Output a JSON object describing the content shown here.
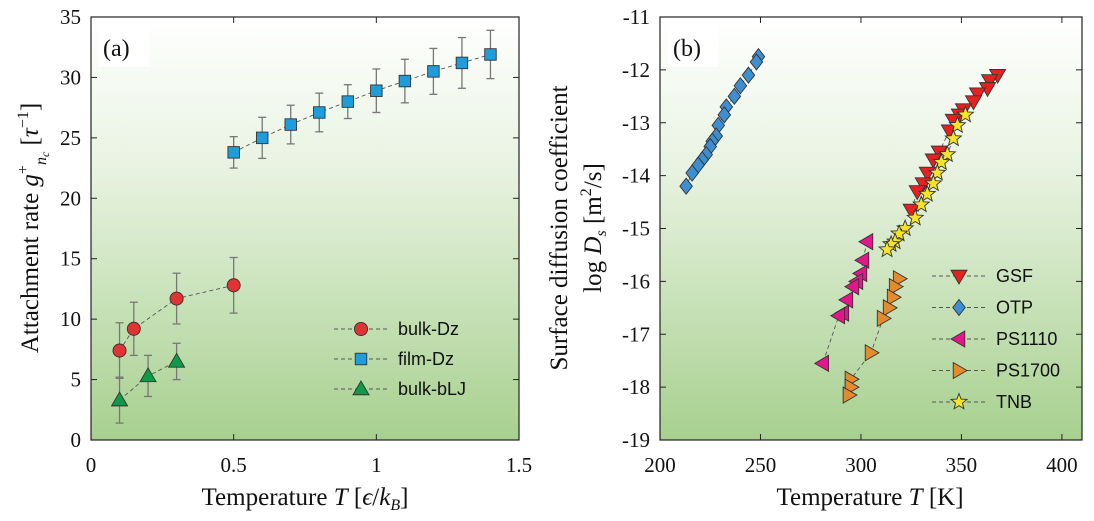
{
  "colors": {
    "bulk_dz": "#e03434",
    "film_dz": "#1d9ddb",
    "bulk_blj": "#0f9a4a",
    "gsf": "#e52222",
    "otp": "#3d8fd1",
    "ps1110": "#e5168c",
    "ps1700": "#e38c2f",
    "tnb": "#f5e428"
  },
  "chart_data": [
    {
      "type": "scatter",
      "panel_label": "(a)",
      "xlabel": "Temperature T [ϵ/k_B]",
      "ylabel": "Attachment rate g⁺_{n_c} [τ⁻¹]",
      "xlim": [
        0,
        1.5
      ],
      "ylim": [
        0,
        35
      ],
      "xticks": [
        "0",
        "0.5",
        "1",
        "1.5"
      ],
      "yticks": [
        "0",
        "5",
        "10",
        "15",
        "20",
        "25",
        "30",
        "35"
      ],
      "grid": false,
      "legend_position": "bottom-right",
      "series": [
        {
          "name": "bulk-Dz",
          "marker": "circle",
          "color": "#e03434",
          "x": [
            0.1,
            0.15,
            0.3,
            0.5
          ],
          "y": [
            7.4,
            9.2,
            11.7,
            12.8
          ],
          "yerr": [
            2.3,
            2.2,
            2.1,
            2.3
          ]
        },
        {
          "name": "film-Dz",
          "marker": "square",
          "color": "#1d9ddb",
          "x": [
            0.5,
            0.6,
            0.7,
            0.8,
            0.9,
            1.0,
            1.1,
            1.2,
            1.3,
            1.4
          ],
          "y": [
            23.8,
            25.0,
            26.1,
            27.1,
            28.0,
            28.9,
            29.7,
            30.5,
            31.2,
            31.9
          ],
          "yerr": [
            1.3,
            1.7,
            1.6,
            1.6,
            1.4,
            1.8,
            1.8,
            1.9,
            2.1,
            2.0
          ]
        },
        {
          "name": "bulk-bLJ",
          "marker": "triangle-up",
          "color": "#0f9a4a",
          "x": [
            0.1,
            0.2,
            0.3
          ],
          "y": [
            3.3,
            5.3,
            6.5
          ],
          "yerr": [
            1.9,
            1.7,
            1.5
          ]
        }
      ]
    },
    {
      "type": "scatter",
      "panel_label": "(b)",
      "xlabel": "Temperature T [K]",
      "ylabel_line1": "Surface diffusion coefficient",
      "ylabel_line2": "log D_s [m²/s]",
      "xlim": [
        200,
        410
      ],
      "ylim": [
        -19,
        -11
      ],
      "xticks": [
        "200",
        "250",
        "300",
        "350",
        "400"
      ],
      "yticks": [
        "-11",
        "-12",
        "-13",
        "-14",
        "-15",
        "-16",
        "-17",
        "-18",
        "-19"
      ],
      "grid": false,
      "legend_position": "bottom-right",
      "series": [
        {
          "name": "GSF",
          "marker": "triangle-down",
          "color": "#e52222",
          "x": [
            368,
            364,
            363,
            358,
            356,
            351,
            349,
            346,
            344,
            339,
            336,
            333,
            331,
            328,
            325
          ],
          "y": [
            -12.1,
            -12.2,
            -12.35,
            -12.45,
            -12.6,
            -12.75,
            -12.85,
            -12.95,
            -13.15,
            -13.55,
            -13.7,
            -13.95,
            -14.15,
            -14.3,
            -14.65
          ]
        },
        {
          "name": "OTP",
          "marker": "diamond",
          "color": "#3d8fd1",
          "x": [
            249,
            248,
            244,
            240,
            237,
            233,
            232,
            229,
            228,
            226,
            225,
            223,
            221,
            219,
            216,
            213
          ],
          "y": [
            -11.75,
            -11.85,
            -12.1,
            -12.3,
            -12.5,
            -12.7,
            -12.85,
            -13.05,
            -13.25,
            -13.35,
            -13.45,
            -13.6,
            -13.7,
            -13.8,
            -13.95,
            -14.2
          ]
        },
        {
          "name": "PS1110",
          "marker": "triangle-left",
          "color": "#e5168c",
          "x": [
            303,
            301,
            300,
            298,
            296,
            293,
            291,
            289,
            281
          ],
          "y": [
            -15.25,
            -15.6,
            -15.85,
            -16.0,
            -16.1,
            -16.35,
            -16.6,
            -16.65,
            -17.55
          ]
        },
        {
          "name": "PS1700",
          "marker": "triangle-right",
          "color": "#e38c2f",
          "x": [
            319,
            317,
            316,
            314,
            311,
            305,
            295,
            295,
            294
          ],
          "y": [
            -15.95,
            -16.1,
            -16.3,
            -16.5,
            -16.7,
            -17.35,
            -17.85,
            -18.0,
            -18.15
          ]
        },
        {
          "name": "TNB",
          "marker": "star",
          "color": "#f5e428",
          "x": [
            352,
            348,
            346,
            343,
            340,
            338,
            336,
            333,
            330,
            327,
            322,
            319,
            317,
            315,
            313
          ],
          "y": [
            -12.85,
            -13.05,
            -13.3,
            -13.6,
            -13.75,
            -13.95,
            -14.15,
            -14.35,
            -14.55,
            -14.8,
            -15.0,
            -15.1,
            -15.25,
            -15.3,
            -15.4
          ]
        }
      ]
    }
  ]
}
